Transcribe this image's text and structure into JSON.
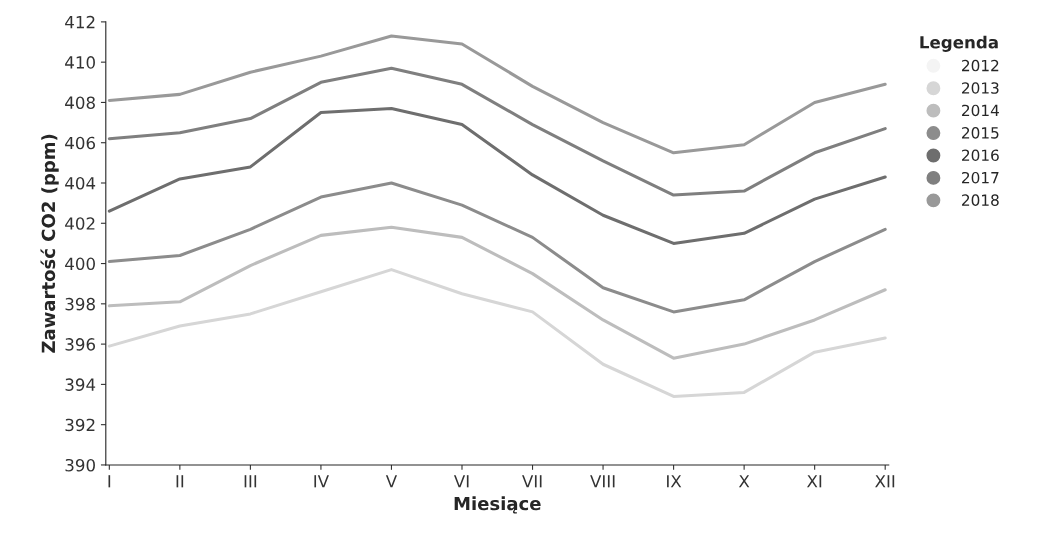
{
  "chart_data": {
    "type": "line",
    "xlabel": "Miesiące",
    "ylabel": "Zawartość CO2 (ppm)",
    "legend_title": "Legenda",
    "legend": "right",
    "categories": [
      "I",
      "II",
      "III",
      "IV",
      "V",
      "VI",
      "VII",
      "VIII",
      "IX",
      "X",
      "XI",
      "XII"
    ],
    "ylim": [
      390,
      412
    ],
    "yticks": [
      390,
      392,
      394,
      396,
      398,
      400,
      402,
      404,
      406,
      408,
      410,
      412
    ],
    "grid": false,
    "marker": "none",
    "line_style": "solid",
    "series": [
      {
        "name": "2012",
        "color": "#f4f4f4",
        "values": [
          null,
          null,
          null,
          null,
          null,
          null,
          null,
          null,
          null,
          null,
          null,
          null
        ]
      },
      {
        "name": "2013",
        "color": "#d6d6d6",
        "values": [
          395.9,
          396.9,
          397.5,
          398.6,
          399.7,
          398.5,
          397.6,
          395.0,
          393.4,
          393.6,
          395.6,
          396.3
        ]
      },
      {
        "name": "2014",
        "color": "#bdbdbd",
        "values": [
          397.9,
          398.1,
          399.9,
          401.4,
          401.8,
          401.3,
          399.5,
          397.2,
          395.3,
          396.0,
          397.2,
          398.7
        ]
      },
      {
        "name": "2015",
        "color": "#8c8c8c",
        "values": [
          400.1,
          400.4,
          401.7,
          403.3,
          404.0,
          402.9,
          401.3,
          398.8,
          397.6,
          398.2,
          400.1,
          401.7
        ]
      },
      {
        "name": "2016",
        "color": "#6e6e6e",
        "values": [
          402.6,
          404.2,
          404.8,
          407.5,
          407.7,
          406.9,
          404.4,
          402.4,
          401.0,
          401.5,
          403.2,
          404.3
        ]
      },
      {
        "name": "2017",
        "color": "#7f7f7f",
        "values": [
          406.2,
          406.5,
          407.2,
          409.0,
          409.7,
          408.9,
          406.9,
          405.1,
          403.4,
          403.6,
          405.5,
          406.7
        ]
      },
      {
        "name": "2018",
        "color": "#999999",
        "values": [
          408.1,
          408.4,
          409.5,
          410.3,
          411.3,
          410.9,
          408.8,
          407.0,
          405.5,
          405.9,
          408.0,
          408.9
        ]
      }
    ]
  }
}
